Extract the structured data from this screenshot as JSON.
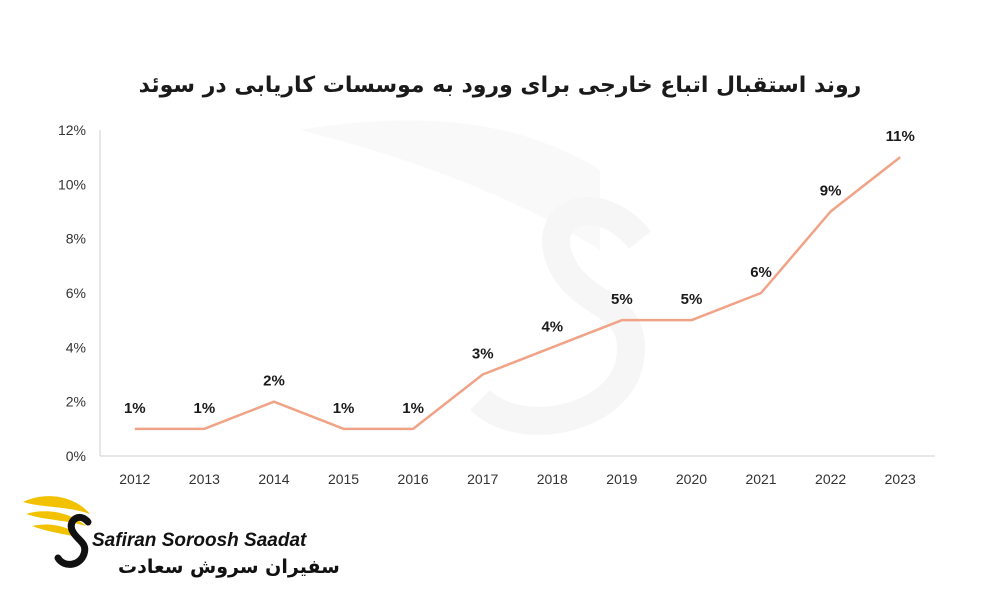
{
  "brand": {
    "name_en": "Safiran Soroosh Saadat",
    "name_fa": "سفیران سروش سعادت",
    "accent_color": "#F2C200"
  },
  "chart_data": {
    "type": "line",
    "title": "روند استقبال اتباع خارجی برای ورود به موسسات کاریابی در سوئد",
    "categories": [
      "2012",
      "2013",
      "2014",
      "2015",
      "2016",
      "2017",
      "2018",
      "2019",
      "2020",
      "2021",
      "2022",
      "2023"
    ],
    "series": [
      {
        "values": [
          1,
          1,
          2,
          1,
          1,
          3,
          4,
          5,
          5,
          6,
          9,
          11
        ],
        "color": "#F0A386"
      }
    ],
    "data_labels": [
      "1%",
      "1%",
      "2%",
      "1%",
      "1%",
      "3%",
      "4%",
      "5%",
      "5%",
      "6%",
      "9%",
      "11%"
    ],
    "y_ticks": [
      "0%",
      "2%",
      "4%",
      "6%",
      "8%",
      "10%",
      "12%"
    ],
    "ylim": [
      0,
      12
    ],
    "xlabel": "",
    "ylabel": "",
    "grid": false,
    "axis_color": "#cfcfcf"
  }
}
